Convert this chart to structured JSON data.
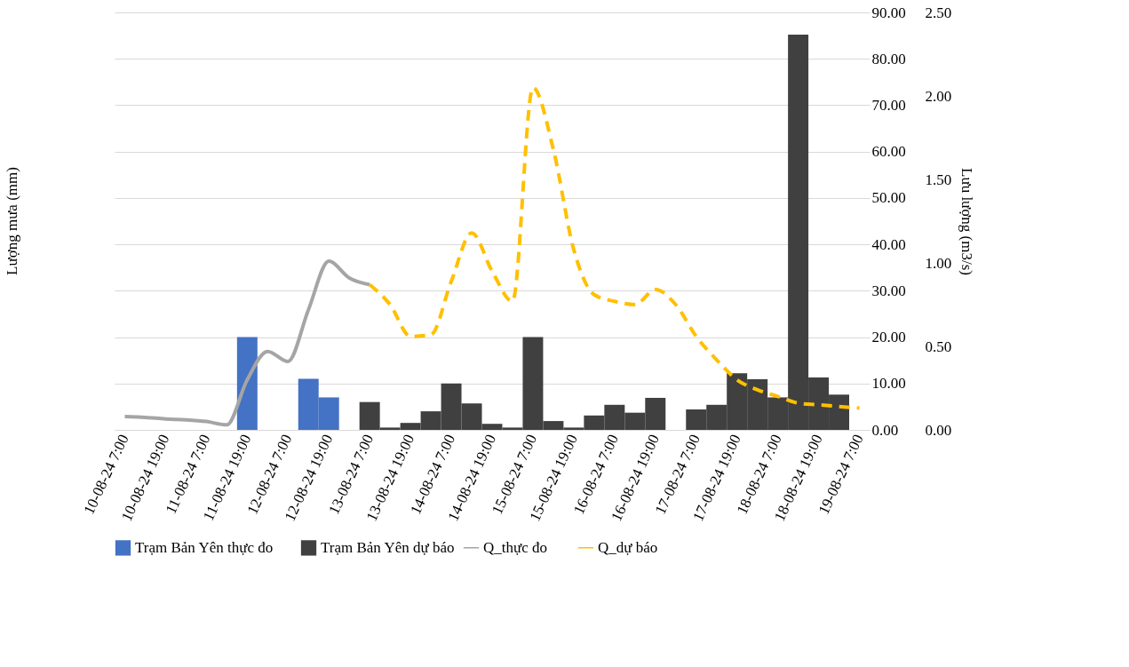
{
  "chart_data": {
    "type": "bar",
    "ylabel": "Lượng mưa (mm)",
    "y2label": "Lưu lượng (m3/s)",
    "categories": [
      "10-08-24 7:00",
      null,
      "10-08-24 19:00",
      null,
      "11-08-24 7:00",
      null,
      "11-08-24 19:00",
      null,
      "12-08-24 7:00",
      null,
      "12-08-24 19:00",
      null,
      "13-08-24 7:00",
      null,
      "13-08-24 19:00",
      null,
      "14-08-24 7:00",
      null,
      "14-08-24 19:00",
      null,
      "15-08-24 7:00",
      null,
      "15-08-24 19:00",
      null,
      "16-08-24 7:00",
      null,
      "16-08-24 19:00",
      null,
      "17-08-24 7:00",
      null,
      "17-08-24 19:00",
      null,
      "18-08-24 7:00",
      null,
      "18-08-24 19:00",
      null,
      "19-08-24 7:00"
    ],
    "series": [
      {
        "name": "Trạm Bản Yên thực đo",
        "color": "#4472c4",
        "values": [
          null,
          null,
          null,
          null,
          null,
          null,
          20,
          null,
          null,
          11,
          7,
          null,
          null,
          null,
          null,
          null,
          null,
          null,
          null,
          null,
          null,
          null,
          null,
          null,
          null,
          null,
          null,
          null,
          null,
          null,
          null,
          null,
          null,
          null,
          null,
          null,
          null
        ]
      },
      {
        "name": "Trạm Bản Yên dự báo",
        "color": "#404040",
        "values": [
          null,
          null,
          null,
          null,
          null,
          null,
          null,
          null,
          null,
          null,
          null,
          null,
          6,
          0.5,
          1.5,
          4,
          10,
          5.7,
          1.3,
          0.5,
          20,
          1.9,
          0.5,
          3.1,
          5.4,
          3.7,
          6.9,
          null,
          4.4,
          5.4,
          12.2,
          10.9,
          7,
          85.2,
          11.3,
          7.6,
          null
        ]
      },
      {
        "name": "Q_thực đo",
        "type": "line",
        "axis": "y2",
        "color": "#a5a5a5",
        "line_style": "solid",
        "values": [
          0.08,
          0.075,
          0.065,
          0.06,
          0.05,
          0.03,
          0.3,
          0.47,
          0.41,
          0.72,
          1.01,
          0.91,
          0.87,
          null,
          null,
          null,
          null,
          null,
          null,
          null,
          null,
          null,
          null,
          null,
          null,
          null,
          null,
          null,
          null,
          null,
          null,
          null,
          null,
          null,
          null,
          null,
          null
        ]
      },
      {
        "name": "Q_dự báo",
        "type": "line",
        "axis": "y2",
        "color": "#ffc000",
        "line_style": "dashed",
        "values": [
          null,
          null,
          null,
          null,
          null,
          null,
          null,
          null,
          null,
          null,
          null,
          null,
          0.87,
          0.75,
          0.56,
          0.57,
          0.89,
          1.18,
          0.95,
          0.77,
          2.05,
          1.68,
          1.08,
          0.81,
          0.77,
          0.75,
          0.84,
          0.75,
          0.56,
          0.42,
          0.3,
          0.24,
          0.2,
          0.16,
          0.15,
          0.14,
          0.13
        ]
      }
    ],
    "ylim": [
      0,
      90
    ],
    "yticks": [
      {
        "value": 0,
        "label": "0.00"
      },
      {
        "value": 10,
        "label": "10.00"
      },
      {
        "value": 20,
        "label": "20.00"
      },
      {
        "value": 30,
        "label": "30.00"
      },
      {
        "value": 40,
        "label": "40.00"
      },
      {
        "value": 50,
        "label": "50.00"
      },
      {
        "value": 60,
        "label": "60.00"
      },
      {
        "value": 70,
        "label": "70.00"
      },
      {
        "value": 80,
        "label": "80.00"
      },
      {
        "value": 90,
        "label": "90.00"
      }
    ],
    "y2lim": [
      0,
      2.5
    ],
    "y2ticks": [
      {
        "value": 0,
        "label": "0.00"
      },
      {
        "value": 0.5,
        "label": "0.50"
      },
      {
        "value": 1,
        "label": "1.00"
      },
      {
        "value": 1.5,
        "label": "1.50"
      },
      {
        "value": 2,
        "label": "2.00"
      },
      {
        "value": 2.5,
        "label": "2.50"
      }
    ],
    "grid": "y",
    "legend": "bottom"
  }
}
